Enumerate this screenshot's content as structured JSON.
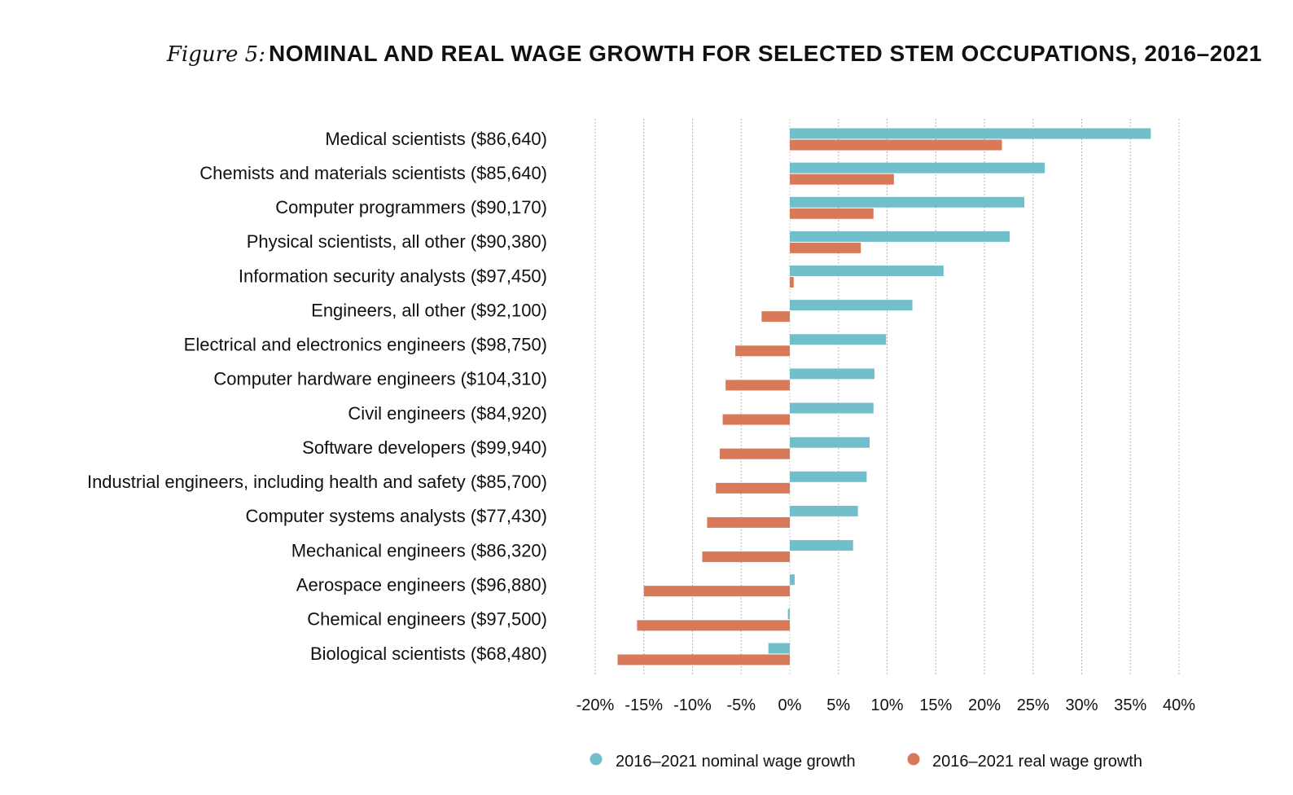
{
  "figure": {
    "label": "Figure 5:",
    "title": "NOMINAL AND REAL WAGE GROWTH FOR SELECTED STEM OCCUPATIONS, 2016–2021"
  },
  "colors": {
    "nominal": "#72bfcc",
    "real": "#d8795a",
    "grid": "#9a9a9a"
  },
  "chart_data": {
    "type": "bar",
    "orientation": "horizontal",
    "categories": [
      "Medical scientists ($86,640)",
      "Chemists and materials scientists ($85,640)",
      "Computer programmers ($90,170)",
      "Physical scientists, all other ($90,380)",
      "Information security analysts ($97,450)",
      "Engineers, all other ($92,100)",
      "Electrical and electronics engineers ($98,750)",
      "Computer hardware engineers ($104,310)",
      "Civil engineers ($84,920)",
      "Software developers ($99,940)",
      "Industrial engineers, including health and safety ($85,700)",
      "Computer systems analysts ($77,430)",
      "Mechanical engineers ($86,320)",
      "Aerospace engineers ($96,880)",
      "Chemical engineers ($97,500)",
      "Biological scientists ($68,480)"
    ],
    "series": [
      {
        "name": "2016–2021 nominal wage growth",
        "color": "#72bfcc",
        "values": [
          37.1,
          26.2,
          24.1,
          22.6,
          15.8,
          12.6,
          9.9,
          8.7,
          8.6,
          8.2,
          7.9,
          7.0,
          6.5,
          0.5,
          -0.2,
          -2.2
        ]
      },
      {
        "name": "2016–2021 real wage growth",
        "color": "#d8795a",
        "values": [
          21.8,
          10.7,
          8.6,
          7.3,
          0.4,
          -2.9,
          -5.6,
          -6.6,
          -6.9,
          -7.2,
          -7.6,
          -8.5,
          -9.0,
          -15.0,
          -15.7,
          -17.7
        ]
      }
    ],
    "xlim": [
      -20,
      40
    ],
    "xticks": [
      "-20%",
      "-15%",
      "-10%",
      "-5%",
      "0%",
      "5%",
      "10%",
      "15%",
      "20%",
      "25%",
      "30%",
      "35%",
      "40%"
    ],
    "grid": true,
    "legend": "bottom"
  }
}
